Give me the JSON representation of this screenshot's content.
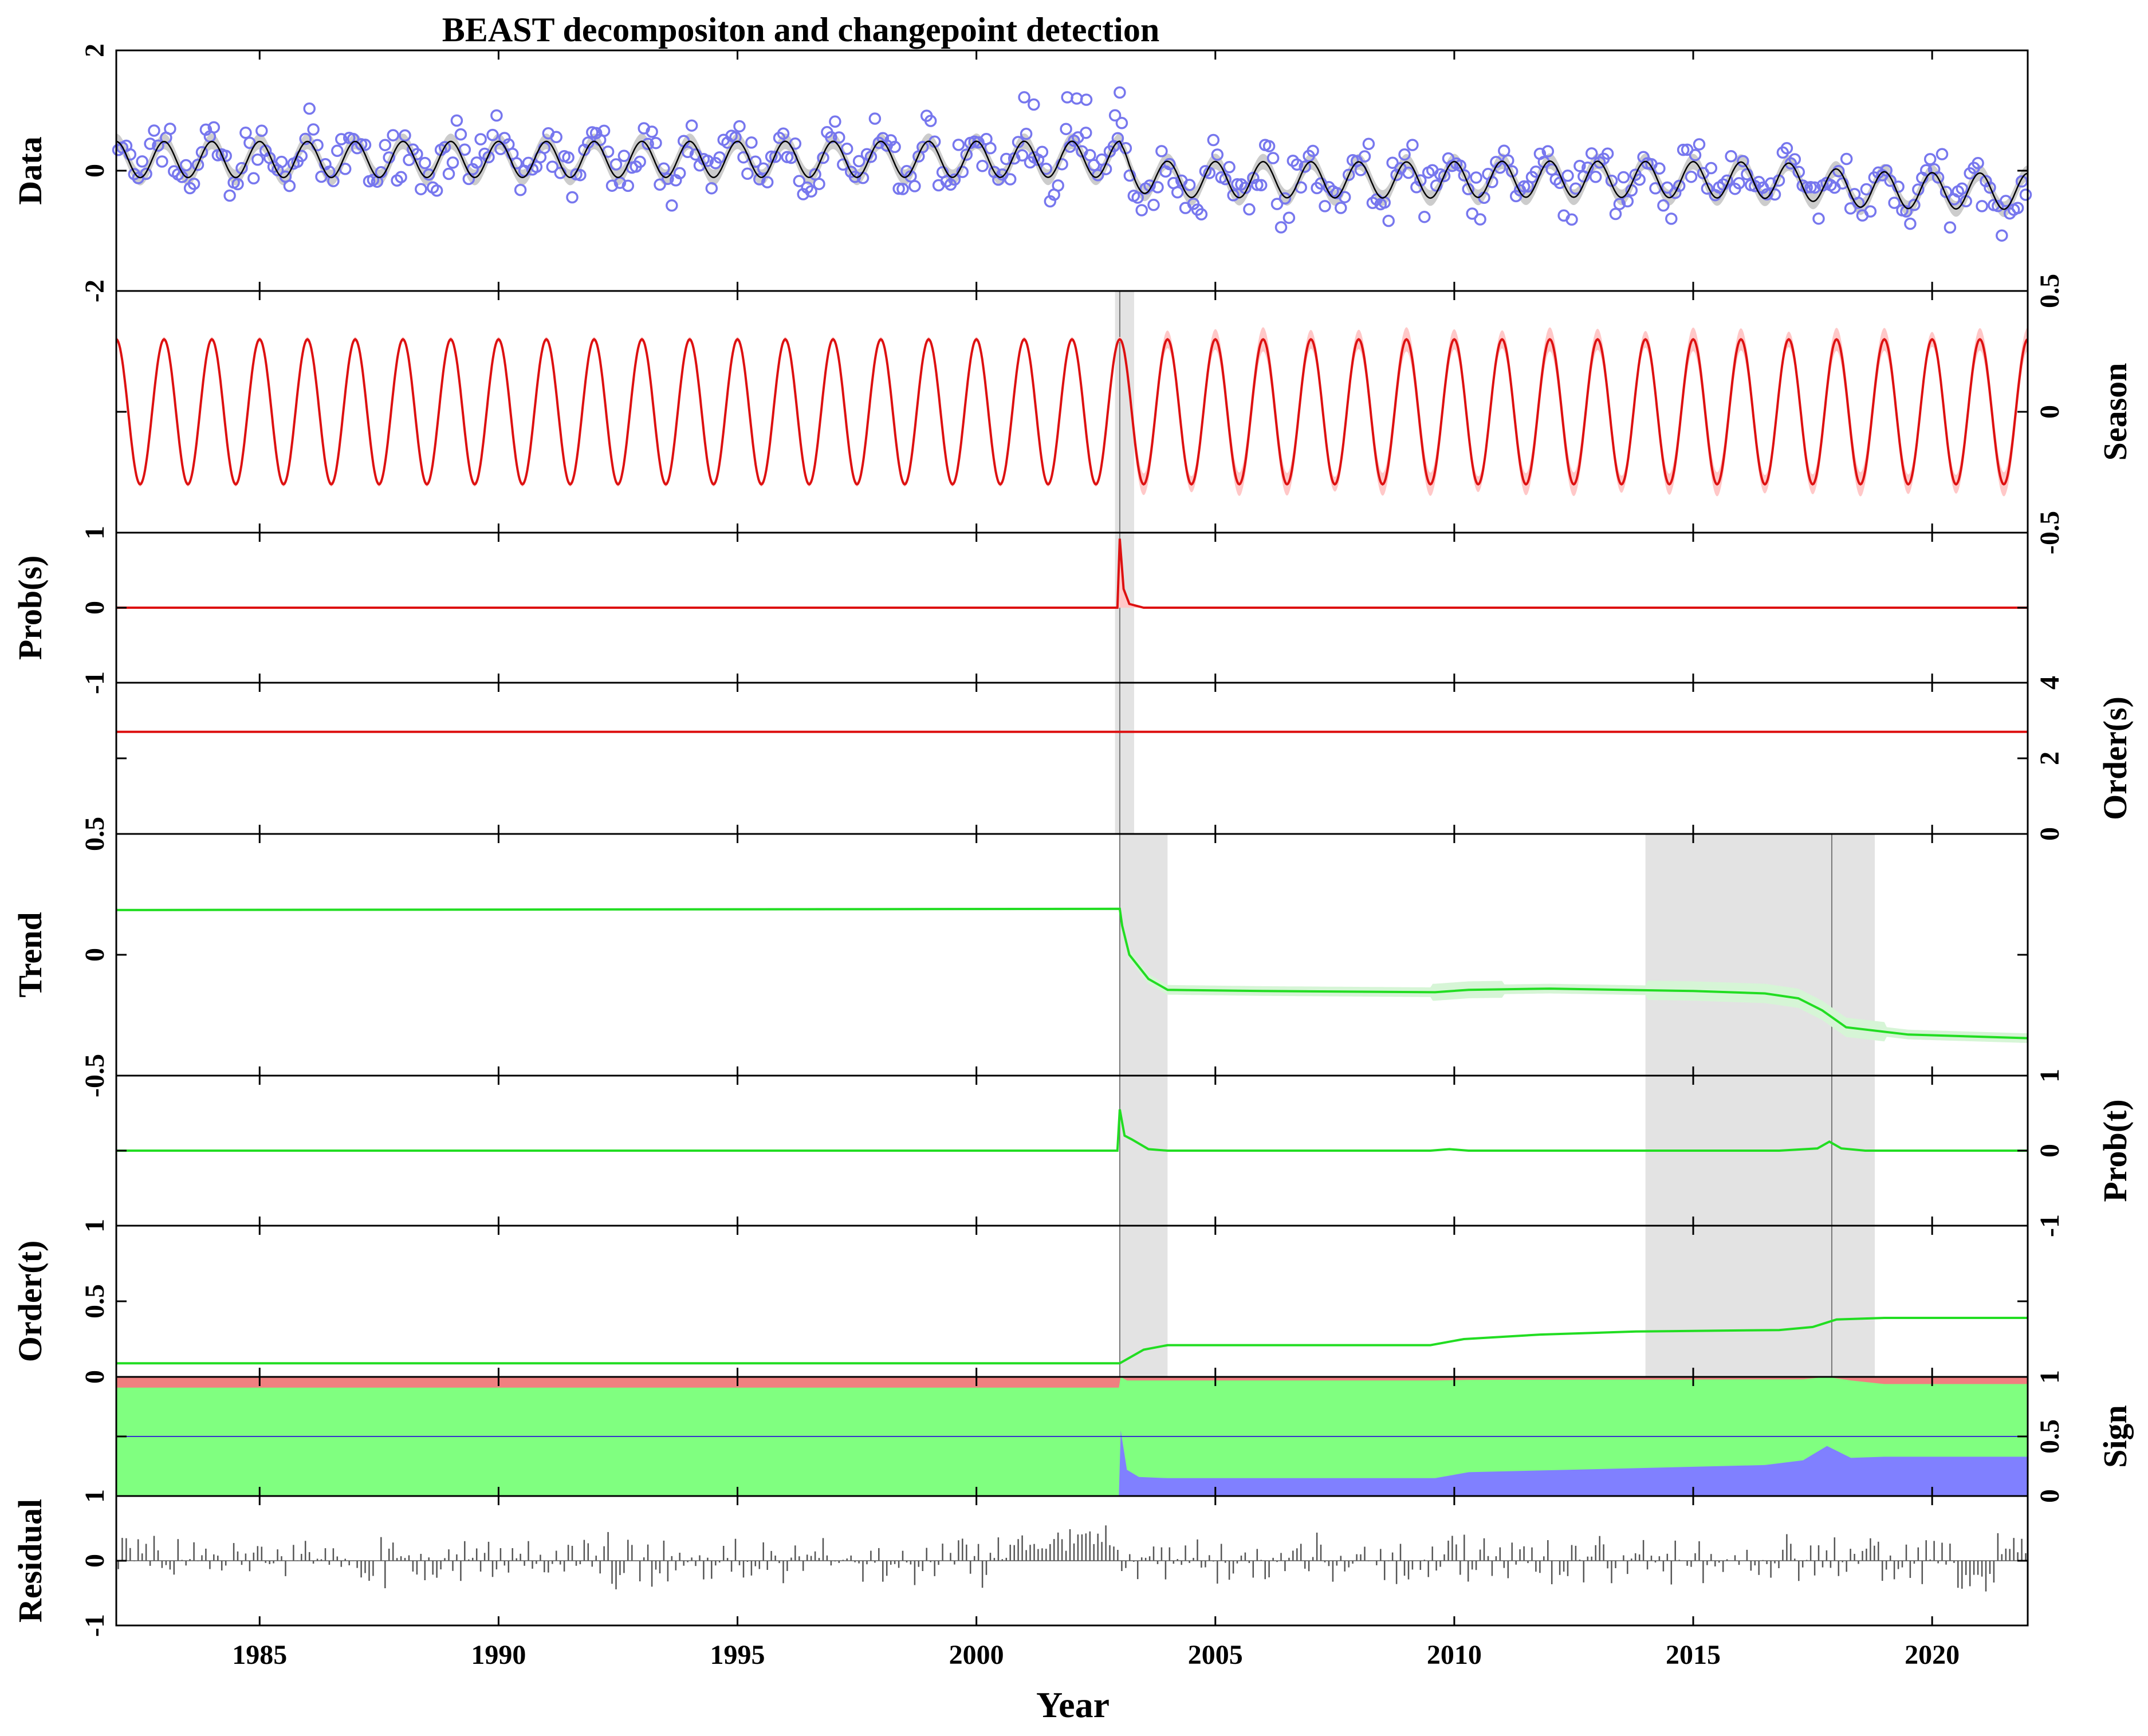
{
  "chart_data": {
    "type": "line",
    "title": "BEAST decompositon and changepoint detection",
    "xlabel": "Year",
    "xlim": [
      1982,
      2022
    ],
    "xticks": [
      "1985",
      "1990",
      "1995",
      "2000",
      "2005",
      "2010",
      "2015",
      "2020"
    ],
    "colors": {
      "data_points": "#7777ee",
      "fit_line": "#000000",
      "fit_band": "#cccccc",
      "season": "#dd1111",
      "season_band": "#ffc8c8",
      "trend": "#22dd22",
      "trend_band": "#d6f5d6",
      "changepoint_band": "#e3e3e3",
      "sign_positive": "#f08080",
      "sign_zero": "#80ff80",
      "sign_negative": "#8080ff",
      "residual": "#555555"
    },
    "changepoints": {
      "season": [
        {
          "year": 2003.0,
          "band": [
            2002.9,
            2003.3
          ]
        }
      ],
      "trend": [
        {
          "year": 2003.0,
          "band": [
            2003.0,
            2004.0
          ]
        },
        {
          "year": 2017.9,
          "band": [
            2014.0,
            2018.8
          ]
        }
      ]
    },
    "panels": [
      {
        "id": "data",
        "label": "Data",
        "side": "left",
        "ylim": [
          -2,
          2
        ],
        "ticks": [
          "-2",
          "0",
          "2"
        ],
        "tick_values": [
          -2,
          0,
          2
        ]
      },
      {
        "id": "season",
        "label": "Season",
        "side": "right",
        "ylim": [
          -0.5,
          0.5
        ],
        "ticks": [
          "-0.5",
          "0",
          "0.5"
        ],
        "tick_values": [
          -0.5,
          0,
          0.5
        ],
        "amplitude": 0.3
      },
      {
        "id": "prob_s",
        "label": "Prob(s)",
        "side": "left",
        "ylim": [
          -1,
          1
        ],
        "ticks": [
          "-1",
          "0",
          "1"
        ],
        "tick_values": [
          -1,
          0,
          1
        ]
      },
      {
        "id": "order_s",
        "label": "Order(s)",
        "side": "right",
        "ylim": [
          0,
          4
        ],
        "ticks": [
          "0",
          "2",
          "4"
        ],
        "tick_values": [
          0,
          2,
          4
        ],
        "value": 2.7
      },
      {
        "id": "trend",
        "label": "Trend",
        "side": "left",
        "ylim": [
          -0.5,
          0.5
        ],
        "ticks": [
          "-0.5",
          "0",
          "0.5"
        ],
        "tick_values": [
          -0.5,
          0,
          0.5
        ]
      },
      {
        "id": "prob_t",
        "label": "Prob(t)",
        "side": "right",
        "ylim": [
          -1,
          1
        ],
        "ticks": [
          "-1",
          "0",
          "1"
        ],
        "tick_values": [
          -1,
          0,
          1
        ]
      },
      {
        "id": "order_t",
        "label": "Order(t)",
        "side": "left",
        "ylim": [
          0,
          1
        ],
        "ticks": [
          "0",
          "0.5",
          "1"
        ],
        "tick_values": [
          0,
          0.5,
          1
        ]
      },
      {
        "id": "sign",
        "label": "Sign",
        "side": "right",
        "ylim": [
          0,
          1
        ],
        "ticks": [
          "0",
          "0.5",
          "1"
        ],
        "tick_values": [
          0,
          0.5,
          1
        ]
      },
      {
        "id": "residual",
        "label": "Residual",
        "side": "left",
        "ylim": [
          -1,
          1
        ],
        "ticks": [
          "-1",
          "0",
          "1"
        ],
        "tick_values": [
          -1,
          0,
          1
        ]
      }
    ],
    "trend_series": {
      "x": [
        1982,
        2003.0,
        2003.05,
        2003.2,
        2003.6,
        2004.0,
        2006.0,
        2009.6,
        2010.3,
        2012.0,
        2015.0,
        2016.5,
        2017.2,
        2017.7,
        2018.2,
        2019.5,
        2022
      ],
      "y": [
        0.185,
        0.19,
        0.12,
        0.0,
        -0.1,
        -0.145,
        -0.15,
        -0.155,
        -0.145,
        -0.14,
        -0.15,
        -0.16,
        -0.18,
        -0.23,
        -0.3,
        -0.33,
        -0.345
      ]
    },
    "prob_t_series": {
      "x": [
        1982,
        2002.95,
        2003.0,
        2003.1,
        2003.25,
        2003.6,
        2004.0,
        2009.5,
        2009.9,
        2010.3,
        2016.8,
        2017.6,
        2017.85,
        2018.1,
        2018.6,
        2022
      ],
      "y": [
        0,
        0,
        0.55,
        0.2,
        0.15,
        0.02,
        0,
        0,
        0.02,
        0,
        0,
        0.03,
        0.12,
        0.03,
        0,
        0
      ]
    },
    "prob_s_series": {
      "x": [
        1982,
        2002.95,
        2003.0,
        2003.08,
        2003.2,
        2003.5,
        2022
      ],
      "y": [
        0,
        0,
        0.92,
        0.25,
        0.05,
        0,
        0
      ]
    },
    "order_t_series": {
      "x": [
        1982,
        2003.0,
        2003.5,
        2004.0,
        2009.5,
        2010.2,
        2011.8,
        2013.8,
        2016.8,
        2017.5,
        2018.0,
        2019.0,
        2022
      ],
      "y": [
        0.09,
        0.09,
        0.18,
        0.21,
        0.21,
        0.25,
        0.28,
        0.3,
        0.31,
        0.33,
        0.38,
        0.39,
        0.39
      ]
    },
    "sign_series": {
      "x": [
        1982,
        2002.98,
        2003.02,
        2003.15,
        2003.4,
        2004.0,
        2009.6,
        2010.3,
        2016.5,
        2017.3,
        2017.8,
        2018.3,
        2019.0,
        2022
      ],
      "negative": [
        0,
        0,
        0.55,
        0.22,
        0.16,
        0.15,
        0.15,
        0.2,
        0.26,
        0.3,
        0.42,
        0.32,
        0.33,
        0.33
      ],
      "positive": [
        0.09,
        0.09,
        0.0,
        0.03,
        0.03,
        0.03,
        0.03,
        0.025,
        0.02,
        0.02,
        0.0,
        0.03,
        0.06,
        0.06
      ]
    },
    "data_points": {
      "x": [
        2001.0,
        2001.2,
        2001.9,
        2002.1,
        2002.3,
        2002.9,
        2003.0
      ],
      "y": [
        1.22,
        1.1,
        1.22,
        1.2,
        1.18,
        0.92,
        1.3
      ],
      "note_count": 480
    }
  }
}
